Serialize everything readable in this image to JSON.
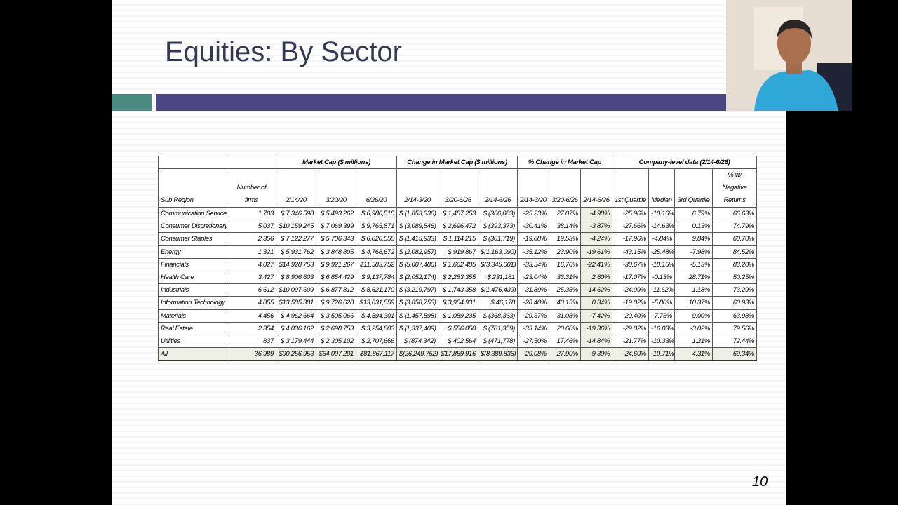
{
  "slide": {
    "title": "Equities: By Sector",
    "page_number": "10"
  },
  "table": {
    "group_headers": [
      "Market Cap ($ millions)",
      "Change in Market Cap ($ millions)",
      "% Change in Market Cap",
      "Company-level data (2/14-6/26)"
    ],
    "columns": [
      "Sub Region",
      "Number of firms",
      "2/14/20",
      "3/20/20",
      "6/26/20",
      "2/14-3/20",
      "3/20-6/26",
      "2/14-6/26",
      "2/14-3/20",
      "3/20-6/26",
      "2/14-6/26",
      "1st Quartile",
      "Median",
      "3rd Quartile",
      "% w/ Negative Returns"
    ],
    "rows": [
      [
        "Communication Services",
        "1,703",
        "$ 7,346,598",
        "$ 5,493,262",
        "$ 6,980,515",
        "$ (1,853,336)",
        "$ 1,487,253",
        "$ (366,083)",
        "-25.23%",
        "27.07%",
        "-4.98%",
        "-25.96%",
        "-10.16%",
        "6.79%",
        "66.63%"
      ],
      [
        "Consumer Discretionary",
        "5,037",
        "$10,159,245",
        "$ 7,069,399",
        "$ 9,765,871",
        "$ (3,089,846)",
        "$ 2,696,472",
        "$ (393,373)",
        "-30.41%",
        "38.14%",
        "-3.87%",
        "-27.66%",
        "-14.63%",
        "0.13%",
        "74.79%"
      ],
      [
        "Consumer Staples",
        "2,356",
        "$ 7,122,277",
        "$ 5,706,343",
        "$ 6,820,558",
        "$ (1,415,933)",
        "$ 1,114,215",
        "$ (301,719)",
        "-19.88%",
        "19.53%",
        "-4.24%",
        "-17.96%",
        "-4.84%",
        "9.84%",
        "60.70%"
      ],
      [
        "Energy",
        "1,321",
        "$ 5,931,762",
        "$ 3,848,805",
        "$ 4,768,672",
        "$ (2,082,957)",
        "$ 919,867",
        "$(1,163,090)",
        "-35.12%",
        "23.90%",
        "-19.61%",
        "-43.15%",
        "-25.48%",
        "-7.98%",
        "84.52%"
      ],
      [
        "Financials",
        "4,027",
        "$14,928,753",
        "$ 9,921,267",
        "$11,583,752",
        "$ (5,007,486)",
        "$ 1,662,485",
        "$(3,345,001)",
        "-33.54%",
        "16.76%",
        "-22.41%",
        "-30.67%",
        "-18.15%",
        "-5.13%",
        "83.20%"
      ],
      [
        "Health Care",
        "3,427",
        "$ 8,906,603",
        "$ 6,854,429",
        "$ 9,137,784",
        "$ (2,052,174)",
        "$ 2,283,355",
        "$ 231,181",
        "-23.04%",
        "33.31%",
        "2.60%",
        "-17.07%",
        "-0.13%",
        "28.71%",
        "50.25%"
      ],
      [
        "Industrials",
        "6,612",
        "$10,097,609",
        "$ 6,877,812",
        "$ 8,621,170",
        "$ (3,219,797)",
        "$ 1,743,358",
        "$(1,476,439)",
        "-31.89%",
        "25.35%",
        "-14.62%",
        "-24.09%",
        "-11.62%",
        "1.18%",
        "73.29%"
      ],
      [
        "Information Technology",
        "4,855",
        "$13,585,381",
        "$ 9,726,628",
        "$13,631,559",
        "$ (3,858,753)",
        "$ 3,904,931",
        "$ 46,178",
        "-28.40%",
        "40.15%",
        "0.34%",
        "-19.02%",
        "-5.80%",
        "10.37%",
        "60.93%"
      ],
      [
        "Materials",
        "4,456",
        "$ 4,962,664",
        "$ 3,505,066",
        "$ 4,594,301",
        "$ (1,457,598)",
        "$ 1,089,235",
        "$ (368,363)",
        "-29.37%",
        "31.08%",
        "-7.42%",
        "-20.40%",
        "-7.73%",
        "9.00%",
        "63.98%"
      ],
      [
        "Real Estate",
        "2,354",
        "$ 4,036,162",
        "$ 2,698,753",
        "$ 3,254,803",
        "$ (1,337,409)",
        "$ 556,050",
        "$ (781,359)",
        "-33.14%",
        "20.60%",
        "-19.36%",
        "-29.02%",
        "-16.03%",
        "-3.02%",
        "79.56%"
      ],
      [
        "Utilities",
        "837",
        "$ 3,179,444",
        "$ 2,305,102",
        "$ 2,707,666",
        "$ (874,342)",
        "$ 402,564",
        "$ (471,778)",
        "-27.50%",
        "17.46%",
        "-14.84%",
        "-21.77%",
        "-10.33%",
        "1.21%",
        "72.44%"
      ],
      [
        "All",
        "36,989",
        "$90,256,953",
        "$64,007,201",
        "$81,867,117",
        "$(26,249,752)",
        "$17,859,916",
        "$(8,389,836)",
        "-29.08%",
        "27.90%",
        "-9.30%",
        "-24.60%",
        "-10.71%",
        "4.31%",
        "69.34%"
      ]
    ]
  }
}
